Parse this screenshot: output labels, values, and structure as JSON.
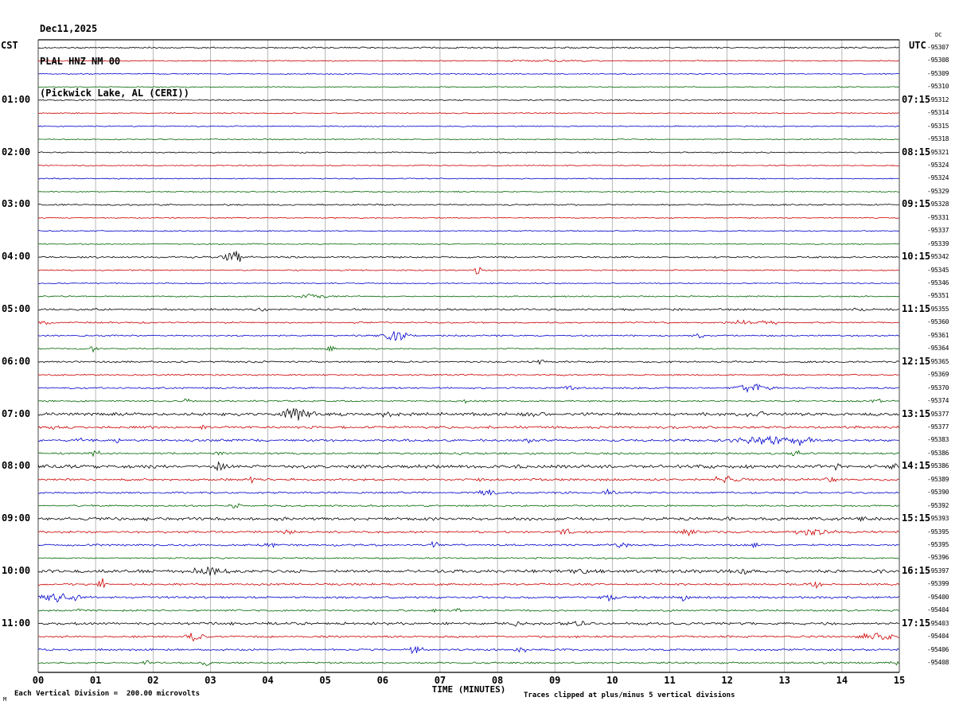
{
  "title": {
    "date": "Dec11,2025",
    "station": "PLAL HNZ NM 00",
    "location": "(Pickwick Lake, AL (CERI))"
  },
  "axes": {
    "left_tz": "CST",
    "right_tz": "UTC",
    "dc_label": "DC",
    "xlabel": "TIME (MINUTES)",
    "x_ticks": [
      "00",
      "01",
      "02",
      "03",
      "04",
      "05",
      "06",
      "07",
      "08",
      "09",
      "10",
      "11",
      "12",
      "13",
      "14",
      "15"
    ]
  },
  "footer": {
    "left": "Each Vertical Division =  200.00 microvolts",
    "right": "Traces clipped at plus/minus 5 vertical divisions",
    "corner": "M"
  },
  "chart_data": {
    "type": "line",
    "description": "Helicorder seismogram, 48 quarter-hour traces of 15 minutes each, colors cycling black/red/blue/green",
    "x_range_minutes": [
      0,
      15
    ],
    "rows_per_hour": 4,
    "clip_divisions": 5,
    "volts_per_division": "200.00 microvolts",
    "colors": {
      "black": "#000000",
      "red": "#cc0000",
      "blue": "#0000cc",
      "green": "#006600"
    },
    "traces": [
      {
        "c": "black",
        "cst": "",
        "utc": "",
        "rv": "-95307",
        "amp": 0.7,
        "ev": []
      },
      {
        "c": "red",
        "cst": "",
        "utc": "",
        "rv": "-95308",
        "amp": 0.55,
        "ev": [
          [
            8.8,
            1.2,
            0.6
          ]
        ]
      },
      {
        "c": "blue",
        "cst": "",
        "utc": "",
        "rv": "-95309",
        "amp": 0.5,
        "ev": []
      },
      {
        "c": "green",
        "cst": "",
        "utc": "",
        "rv": "-95310",
        "amp": 0.5,
        "ev": []
      },
      {
        "c": "black",
        "cst": "01:00",
        "utc": "07:15",
        "rv": "-95312",
        "amp": 0.6,
        "ev": []
      },
      {
        "c": "red",
        "cst": "",
        "utc": "",
        "rv": "-95314",
        "amp": 0.5,
        "ev": []
      },
      {
        "c": "blue",
        "cst": "",
        "utc": "",
        "rv": "-95315",
        "amp": 0.5,
        "ev": []
      },
      {
        "c": "green",
        "cst": "",
        "utc": "",
        "rv": "-95318",
        "amp": 0.5,
        "ev": []
      },
      {
        "c": "black",
        "cst": "02:00",
        "utc": "08:15",
        "rv": "-95321",
        "amp": 0.6,
        "ev": []
      },
      {
        "c": "red",
        "cst": "",
        "utc": "",
        "rv": "-95324",
        "amp": 0.5,
        "ev": []
      },
      {
        "c": "blue",
        "cst": "",
        "utc": "",
        "rv": "-95324",
        "amp": 0.5,
        "ev": []
      },
      {
        "c": "green",
        "cst": "",
        "utc": "",
        "rv": "-95329",
        "amp": 0.5,
        "ev": []
      },
      {
        "c": "black",
        "cst": "03:00",
        "utc": "09:15",
        "rv": "-95328",
        "amp": 0.7,
        "ev": []
      },
      {
        "c": "red",
        "cst": "",
        "utc": "",
        "rv": "-95331",
        "amp": 0.5,
        "ev": []
      },
      {
        "c": "blue",
        "cst": "",
        "utc": "",
        "rv": "-95337",
        "amp": 0.5,
        "ev": []
      },
      {
        "c": "green",
        "cst": "",
        "utc": "",
        "rv": "-95339",
        "amp": 0.55,
        "ev": []
      },
      {
        "c": "black",
        "cst": "04:00",
        "utc": "10:15",
        "rv": "-95342",
        "amp": 0.8,
        "ev": [
          [
            3.4,
            8,
            0.18
          ]
        ]
      },
      {
        "c": "red",
        "cst": "",
        "utc": "",
        "rv": "-95345",
        "amp": 0.6,
        "ev": [
          [
            7.66,
            5,
            0.1
          ]
        ]
      },
      {
        "c": "blue",
        "cst": "",
        "utc": "",
        "rv": "-95346",
        "amp": 0.55,
        "ev": []
      },
      {
        "c": "green",
        "cst": "",
        "utc": "",
        "rv": "-95351",
        "amp": 0.6,
        "ev": [
          [
            4.8,
            3,
            0.3
          ]
        ]
      },
      {
        "c": "black",
        "cst": "05:00",
        "utc": "11:15",
        "rv": "-95355",
        "amp": 0.9,
        "ev": [
          [
            3.9,
            3,
            0.12
          ],
          [
            14.3,
            2.5,
            0.15
          ]
        ]
      },
      {
        "c": "red",
        "cst": "",
        "utc": "",
        "rv": "-95360",
        "amp": 0.7,
        "ev": [
          [
            0.15,
            4,
            0.1
          ],
          [
            12.2,
            3,
            0.2
          ],
          [
            12.7,
            4,
            0.15
          ]
        ]
      },
      {
        "c": "blue",
        "cst": "",
        "utc": "",
        "rv": "-95361",
        "amp": 0.7,
        "ev": [
          [
            6.2,
            6,
            0.25
          ],
          [
            11.5,
            3,
            0.12
          ]
        ]
      },
      {
        "c": "green",
        "cst": "",
        "utc": "",
        "rv": "-95364",
        "amp": 0.6,
        "ev": [
          [
            0.97,
            4,
            0.08
          ],
          [
            5.1,
            5,
            0.08
          ]
        ]
      },
      {
        "c": "black",
        "cst": "06:00",
        "utc": "12:15",
        "rv": "-95365",
        "amp": 0.8,
        "ev": [
          [
            8.77,
            3.5,
            0.1
          ]
        ]
      },
      {
        "c": "red",
        "cst": "",
        "utc": "",
        "rv": "-95369",
        "amp": 0.7,
        "ev": []
      },
      {
        "c": "blue",
        "cst": "",
        "utc": "",
        "rv": "-95370",
        "amp": 0.8,
        "ev": [
          [
            9.25,
            3,
            0.12
          ],
          [
            12.45,
            6,
            0.3
          ]
        ]
      },
      {
        "c": "green",
        "cst": "",
        "utc": "",
        "rv": "-95374",
        "amp": 0.7,
        "ev": [
          [
            2.6,
            4,
            0.08
          ],
          [
            7.4,
            2,
            0.1
          ],
          [
            14.6,
            3,
            0.1
          ]
        ]
      },
      {
        "c": "black",
        "cst": "07:00",
        "utc": "13:15",
        "rv": "-95377",
        "amp": 1.4,
        "ev": [
          [
            4.47,
            8,
            0.3
          ],
          [
            6.13,
            4,
            0.15
          ],
          [
            8.56,
            3,
            0.15
          ],
          [
            12.5,
            3,
            0.2
          ]
        ]
      },
      {
        "c": "red",
        "cst": "",
        "utc": "",
        "rv": "-95377",
        "amp": 1.1,
        "ev": [
          [
            0.3,
            4,
            0.1
          ],
          [
            2.87,
            4,
            0.08
          ]
        ]
      },
      {
        "c": "blue",
        "cst": "",
        "utc": "",
        "rv": "-95383",
        "amp": 1.1,
        "ev": [
          [
            0.79,
            4,
            0.08
          ],
          [
            1.35,
            4,
            0.08
          ],
          [
            8.56,
            3,
            0.1
          ],
          [
            12.6,
            6,
            0.5
          ],
          [
            13.3,
            5,
            0.2
          ]
        ]
      },
      {
        "c": "green",
        "cst": "",
        "utc": "",
        "rv": "-95386",
        "amp": 0.9,
        "ev": [
          [
            1.0,
            4,
            0.08
          ],
          [
            3.15,
            4,
            0.1
          ],
          [
            7.4,
            3,
            0.1
          ],
          [
            13.2,
            3,
            0.1
          ]
        ]
      },
      {
        "c": "black",
        "cst": "08:00",
        "utc": "14:15",
        "rv": "-95386",
        "amp": 1.5,
        "ev": [
          [
            3.15,
            5,
            0.12
          ],
          [
            13.9,
            4,
            0.12
          ],
          [
            14.9,
            4,
            0.1
          ]
        ]
      },
      {
        "c": "red",
        "cst": "",
        "utc": "",
        "rv": "-95389",
        "amp": 1.0,
        "ev": [
          [
            3.7,
            4,
            0.1
          ],
          [
            7.66,
            2.5,
            0.1
          ],
          [
            12.0,
            5,
            0.3
          ],
          [
            13.83,
            4,
            0.1
          ]
        ]
      },
      {
        "c": "blue",
        "cst": "",
        "utc": "",
        "rv": "-95390",
        "amp": 0.9,
        "ev": [
          [
            7.8,
            5,
            0.15
          ],
          [
            9.95,
            4,
            0.12
          ]
        ]
      },
      {
        "c": "green",
        "cst": "",
        "utc": "",
        "rv": "-95392",
        "amp": 0.8,
        "ev": [
          [
            3.43,
            3.5,
            0.1
          ]
        ]
      },
      {
        "c": "black",
        "cst": "09:00",
        "utc": "15:15",
        "rv": "-95393",
        "amp": 1.4,
        "ev": [
          [
            14.4,
            3,
            0.1
          ]
        ]
      },
      {
        "c": "red",
        "cst": "",
        "utc": "",
        "rv": "-95395",
        "amp": 1.0,
        "ev": [
          [
            4.33,
            4,
            0.12
          ],
          [
            9.18,
            4,
            0.1
          ],
          [
            11.33,
            4,
            0.12
          ],
          [
            13.5,
            4,
            0.3
          ]
        ]
      },
      {
        "c": "blue",
        "cst": "",
        "utc": "",
        "rv": "-95395",
        "amp": 0.9,
        "ev": [
          [
            4.05,
            3,
            0.15
          ],
          [
            6.9,
            4,
            0.12
          ],
          [
            10.16,
            4,
            0.15
          ],
          [
            12.5,
            3,
            0.1
          ]
        ]
      },
      {
        "c": "green",
        "cst": "",
        "utc": "",
        "rv": "-95396",
        "amp": 0.7,
        "ev": []
      },
      {
        "c": "black",
        "cst": "10:00",
        "utc": "16:15",
        "rv": "-95397",
        "amp": 1.4,
        "ev": [
          [
            3.0,
            5,
            0.3
          ],
          [
            9.46,
            4,
            0.12
          ],
          [
            12.3,
            4,
            0.15
          ],
          [
            14.67,
            3,
            0.1
          ]
        ]
      },
      {
        "c": "red",
        "cst": "",
        "utc": "",
        "rv": "-95399",
        "amp": 0.9,
        "ev": [
          [
            1.11,
            7,
            0.07
          ],
          [
            13.55,
            6,
            0.1
          ]
        ]
      },
      {
        "c": "blue",
        "cst": "",
        "utc": "",
        "rv": "-95400",
        "amp": 1.0,
        "ev": [
          [
            0.4,
            6,
            0.4
          ],
          [
            9.95,
            6,
            0.15
          ],
          [
            11.26,
            4,
            0.1
          ]
        ]
      },
      {
        "c": "green",
        "cst": "",
        "utc": "",
        "rv": "-95404",
        "amp": 0.8,
        "ev": [
          [
            0.65,
            3,
            0.1
          ],
          [
            6.9,
            2.5,
            0.1
          ],
          [
            7.3,
            2.5,
            0.1
          ]
        ]
      },
      {
        "c": "black",
        "cst": "11:00",
        "utc": "17:15",
        "rv": "-95403",
        "amp": 1.2,
        "ev": [
          [
            8.35,
            4,
            0.1
          ],
          [
            9.46,
            5,
            0.12
          ]
        ]
      },
      {
        "c": "red",
        "cst": "",
        "utc": "",
        "rv": "-95404",
        "amp": 0.9,
        "ev": [
          [
            2.73,
            5,
            0.2
          ],
          [
            14.6,
            5,
            0.3
          ]
        ]
      },
      {
        "c": "blue",
        "cst": "",
        "utc": "",
        "rv": "-95406",
        "amp": 0.9,
        "ev": [
          [
            6.55,
            5,
            0.15
          ],
          [
            8.42,
            4,
            0.12
          ]
        ]
      },
      {
        "c": "green",
        "cst": "",
        "utc": "",
        "rv": "-95408",
        "amp": 0.8,
        "ev": [
          [
            1.9,
            3,
            0.08
          ],
          [
            2.94,
            5,
            0.1
          ],
          [
            14.9,
            3,
            0.08
          ]
        ]
      }
    ]
  }
}
